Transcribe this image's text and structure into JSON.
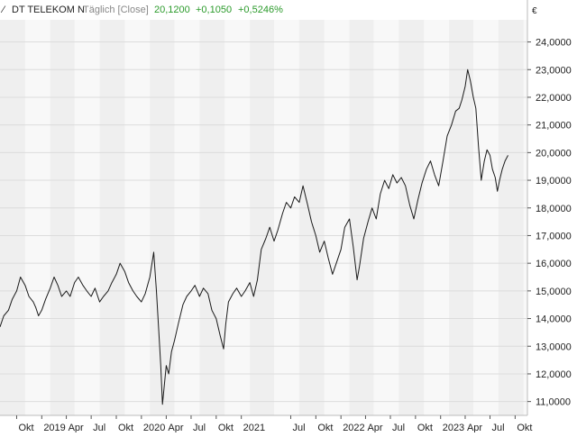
{
  "header": {
    "instrument": "DT TELEKOM N",
    "mode": "Täglich [Close]",
    "last": "20,1200",
    "change": "+0,1050",
    "change_pct": "+0,5246%"
  },
  "currency": "€",
  "colors": {
    "line": "#1a1a1a",
    "positive": "#2a9a2a",
    "muted": "#888888",
    "text": "#222222",
    "band_dark": "#efefef",
    "band_light": "#f8f8f8",
    "grid": "#dcdcdc",
    "frame": "#bbbbbb"
  },
  "chart_data": {
    "type": "line",
    "title": "DT TELEKOM N",
    "grid": true,
    "y_axis_position": "right",
    "ylim": [
      10.5,
      24.8
    ],
    "xlim": [
      "2018-08-01",
      "2023-11-15"
    ],
    "y_ticks": [
      11,
      12,
      13,
      14,
      15,
      16,
      17,
      18,
      19,
      20,
      21,
      22,
      23,
      24
    ],
    "y_tick_labels": [
      "11,0000",
      "12,0000",
      "13,0000",
      "14,0000",
      "15,0000",
      "16,0000",
      "17,0000",
      "18,0000",
      "19,0000",
      "20,0000",
      "21,0000",
      "22,0000",
      "23,0000",
      "24,0000"
    ],
    "x_ticks": [
      {
        "date": "2018-10-01",
        "label": "Okt"
      },
      {
        "date": "2019-01-01",
        "label": "2019"
      },
      {
        "date": "2019-04-01",
        "label": "Apr"
      },
      {
        "date": "2019-07-01",
        "label": "Jul"
      },
      {
        "date": "2019-10-01",
        "label": "Okt"
      },
      {
        "date": "2020-01-01",
        "label": "2020"
      },
      {
        "date": "2020-04-01",
        "label": "Apr"
      },
      {
        "date": "2020-07-01",
        "label": "Jul"
      },
      {
        "date": "2020-10-01",
        "label": "Okt"
      },
      {
        "date": "2021-01-01",
        "label": "2021"
      },
      {
        "date": "2021-07-01",
        "label": "Jul"
      },
      {
        "date": "2021-10-01",
        "label": "Okt"
      },
      {
        "date": "2022-01-01",
        "label": "2022"
      },
      {
        "date": "2022-04-01",
        "label": "Apr"
      },
      {
        "date": "2022-07-01",
        "label": "Jul"
      },
      {
        "date": "2022-10-01",
        "label": "Okt"
      },
      {
        "date": "2023-01-01",
        "label": "2023"
      },
      {
        "date": "2023-04-01",
        "label": "Apr"
      },
      {
        "date": "2023-07-01",
        "label": "Jul"
      },
      {
        "date": "2023-10-01",
        "label": "Okt"
      }
    ],
    "series": [
      {
        "values": [
          [
            "2018-08-01",
            13.7
          ],
          [
            "2018-08-15",
            14.1
          ],
          [
            "2018-09-01",
            14.3
          ],
          [
            "2018-09-15",
            14.7
          ],
          [
            "2018-10-01",
            15.0
          ],
          [
            "2018-10-15",
            15.5
          ],
          [
            "2018-11-01",
            15.2
          ],
          [
            "2018-11-15",
            14.8
          ],
          [
            "2018-12-01",
            14.6
          ],
          [
            "2018-12-10",
            14.4
          ],
          [
            "2018-12-20",
            14.1
          ],
          [
            "2019-01-01",
            14.3
          ],
          [
            "2019-01-15",
            14.7
          ],
          [
            "2019-02-01",
            15.1
          ],
          [
            "2019-02-15",
            15.5
          ],
          [
            "2019-03-01",
            15.2
          ],
          [
            "2019-03-15",
            14.8
          ],
          [
            "2019-04-01",
            15.0
          ],
          [
            "2019-04-15",
            14.8
          ],
          [
            "2019-05-01",
            15.3
          ],
          [
            "2019-05-15",
            15.5
          ],
          [
            "2019-06-01",
            15.2
          ],
          [
            "2019-06-15",
            15.0
          ],
          [
            "2019-07-01",
            14.8
          ],
          [
            "2019-07-15",
            15.1
          ],
          [
            "2019-08-01",
            14.6
          ],
          [
            "2019-08-15",
            14.8
          ],
          [
            "2019-09-01",
            15.0
          ],
          [
            "2019-09-15",
            15.3
          ],
          [
            "2019-10-01",
            15.6
          ],
          [
            "2019-10-15",
            16.0
          ],
          [
            "2019-11-01",
            15.7
          ],
          [
            "2019-11-15",
            15.3
          ],
          [
            "2019-12-01",
            15.0
          ],
          [
            "2019-12-15",
            14.8
          ],
          [
            "2020-01-01",
            14.6
          ],
          [
            "2020-01-15",
            14.9
          ],
          [
            "2020-02-01",
            15.5
          ],
          [
            "2020-02-15",
            16.4
          ],
          [
            "2020-02-25",
            15.0
          ],
          [
            "2020-03-05",
            13.5
          ],
          [
            "2020-03-12",
            12.3
          ],
          [
            "2020-03-18",
            10.9
          ],
          [
            "2020-03-25",
            11.6
          ],
          [
            "2020-04-01",
            12.3
          ],
          [
            "2020-04-10",
            12.0
          ],
          [
            "2020-04-20",
            12.8
          ],
          [
            "2020-05-01",
            13.2
          ],
          [
            "2020-05-15",
            13.8
          ],
          [
            "2020-06-01",
            14.5
          ],
          [
            "2020-06-15",
            14.8
          ],
          [
            "2020-07-01",
            15.0
          ],
          [
            "2020-07-15",
            15.2
          ],
          [
            "2020-08-01",
            14.8
          ],
          [
            "2020-08-15",
            15.1
          ],
          [
            "2020-09-01",
            14.9
          ],
          [
            "2020-09-15",
            14.3
          ],
          [
            "2020-10-01",
            14.0
          ],
          [
            "2020-10-15",
            13.4
          ],
          [
            "2020-10-28",
            12.9
          ],
          [
            "2020-11-05",
            13.8
          ],
          [
            "2020-11-15",
            14.6
          ],
          [
            "2020-12-01",
            14.9
          ],
          [
            "2020-12-15",
            15.1
          ],
          [
            "2021-01-01",
            14.8
          ],
          [
            "2021-01-15",
            15.0
          ],
          [
            "2021-02-01",
            15.3
          ],
          [
            "2021-02-15",
            14.8
          ],
          [
            "2021-03-01",
            15.4
          ],
          [
            "2021-03-15",
            16.5
          ],
          [
            "2021-04-01",
            16.9
          ],
          [
            "2021-04-15",
            17.3
          ],
          [
            "2021-05-01",
            16.8
          ],
          [
            "2021-05-15",
            17.2
          ],
          [
            "2021-06-01",
            17.8
          ],
          [
            "2021-06-15",
            18.2
          ],
          [
            "2021-07-01",
            18.0
          ],
          [
            "2021-07-15",
            18.4
          ],
          [
            "2021-08-01",
            18.2
          ],
          [
            "2021-08-15",
            18.8
          ],
          [
            "2021-09-01",
            18.1
          ],
          [
            "2021-09-15",
            17.5
          ],
          [
            "2021-10-01",
            17.0
          ],
          [
            "2021-10-15",
            16.4
          ],
          [
            "2021-11-01",
            16.8
          ],
          [
            "2021-11-15",
            16.2
          ],
          [
            "2021-12-01",
            15.6
          ],
          [
            "2021-12-15",
            16.0
          ],
          [
            "2022-01-01",
            16.5
          ],
          [
            "2022-01-15",
            17.3
          ],
          [
            "2022-02-01",
            17.6
          ],
          [
            "2022-02-15",
            16.6
          ],
          [
            "2022-03-01",
            15.4
          ],
          [
            "2022-03-10",
            15.9
          ],
          [
            "2022-03-25",
            16.9
          ],
          [
            "2022-04-10",
            17.5
          ],
          [
            "2022-04-25",
            18.0
          ],
          [
            "2022-05-10",
            17.6
          ],
          [
            "2022-05-25",
            18.5
          ],
          [
            "2022-06-10",
            19.0
          ],
          [
            "2022-06-25",
            18.7
          ],
          [
            "2022-07-10",
            19.2
          ],
          [
            "2022-07-25",
            18.9
          ],
          [
            "2022-08-10",
            19.1
          ],
          [
            "2022-08-25",
            18.8
          ],
          [
            "2022-09-10",
            18.1
          ],
          [
            "2022-09-25",
            17.6
          ],
          [
            "2022-10-10",
            18.3
          ],
          [
            "2022-10-25",
            18.9
          ],
          [
            "2022-11-10",
            19.4
          ],
          [
            "2022-11-25",
            19.7
          ],
          [
            "2022-12-10",
            19.2
          ],
          [
            "2022-12-25",
            18.8
          ],
          [
            "2023-01-10",
            19.7
          ],
          [
            "2023-01-25",
            20.6
          ],
          [
            "2023-02-10",
            21.0
          ],
          [
            "2023-02-25",
            21.5
          ],
          [
            "2023-03-10",
            21.6
          ],
          [
            "2023-03-20",
            21.9
          ],
          [
            "2023-04-01",
            22.4
          ],
          [
            "2023-04-10",
            23.0
          ],
          [
            "2023-04-20",
            22.6
          ],
          [
            "2023-05-01",
            22.0
          ],
          [
            "2023-05-10",
            21.6
          ],
          [
            "2023-05-20",
            20.2
          ],
          [
            "2023-05-30",
            19.0
          ],
          [
            "2023-06-10",
            19.7
          ],
          [
            "2023-06-20",
            20.1
          ],
          [
            "2023-07-01",
            19.9
          ],
          [
            "2023-07-10",
            19.4
          ],
          [
            "2023-07-20",
            19.1
          ],
          [
            "2023-07-28",
            18.6
          ],
          [
            "2023-08-05",
            19.0
          ],
          [
            "2023-08-15",
            19.4
          ],
          [
            "2023-08-25",
            19.7
          ],
          [
            "2023-09-05",
            19.9
          ]
        ]
      }
    ]
  }
}
